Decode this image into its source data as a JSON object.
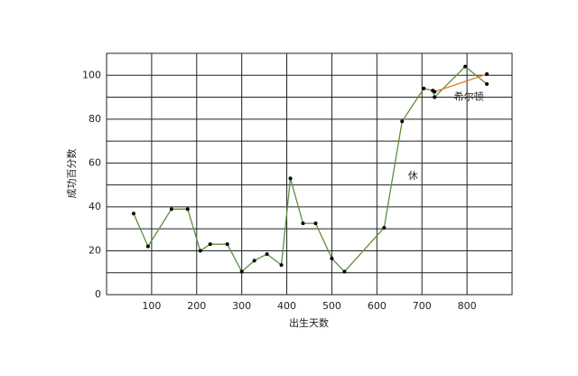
{
  "chart_data": {
    "type": "line",
    "xlabel": "出生天数",
    "ylabel": "成功百分数",
    "xlim": [
      0,
      900
    ],
    "ylim": [
      0,
      110
    ],
    "xticks": [
      100,
      200,
      300,
      400,
      500,
      600,
      700,
      800
    ],
    "yticks": [
      0,
      20,
      40,
      60,
      80,
      100
    ],
    "minor_yticks": [
      10,
      30,
      50,
      70,
      90
    ],
    "grid": true,
    "series": [
      {
        "color": "#5e8f3c",
        "markers": true,
        "x": [
          60,
          92,
          144,
          180,
          208,
          230,
          268,
          300,
          328,
          356,
          388,
          408,
          436,
          464,
          500,
          528,
          616,
          656,
          704,
          724,
          728,
          796,
          844
        ],
        "values": [
          37,
          22,
          39,
          39,
          20,
          23,
          23,
          10.5,
          15.5,
          18.5,
          13.5,
          53,
          32.5,
          32.5,
          16.5,
          10.5,
          30.5,
          79,
          94,
          93,
          90,
          104,
          96
        ]
      },
      {
        "color": "#e07a20",
        "markers": true,
        "x": [
          728,
          844
        ],
        "values": [
          92.5,
          100.5
        ]
      }
    ],
    "annotations": [
      {
        "text": "休",
        "x": 680,
        "y": 54
      },
      {
        "text": "希尔顿",
        "x": 804,
        "y": 90
      }
    ]
  }
}
